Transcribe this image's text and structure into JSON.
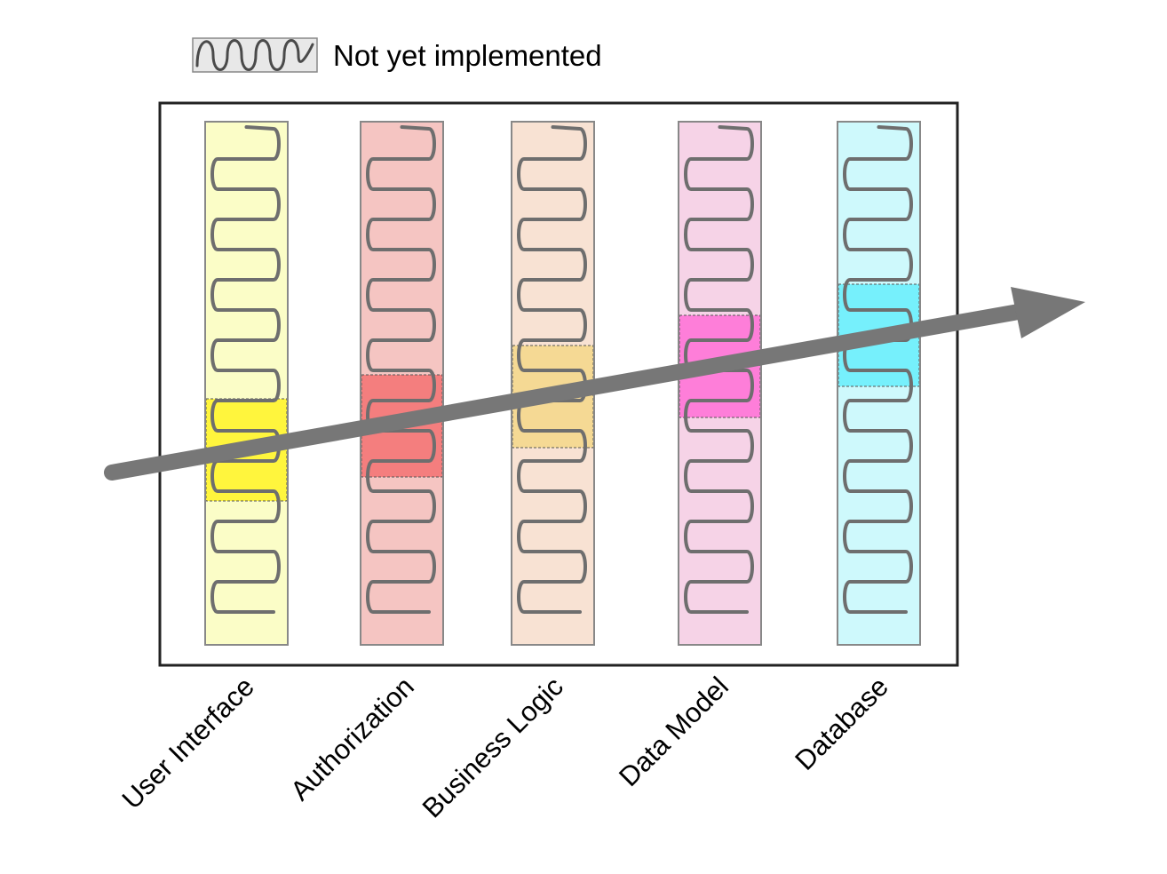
{
  "legend": {
    "label": "Not yet implemented",
    "icon": "squiggle-icon",
    "icon_fill": "#e8e8e8"
  },
  "layers": [
    {
      "label": "User Interface",
      "fill": "#fbfdc7",
      "highlight": "#fff53d"
    },
    {
      "label": "Authorization",
      "fill": "#f5c5c2",
      "highlight": "#f47e7e"
    },
    {
      "label": "Business Logic",
      "fill": "#f8e2d3",
      "highlight": "#f5d994"
    },
    {
      "label": "Data Model",
      "fill": "#f6d3e7",
      "highlight": "#fe7ed9"
    },
    {
      "label": "Database",
      "fill": "#cef9fc",
      "highlight": "#76f0fc"
    }
  ],
  "arrow": {
    "color": "#777777"
  },
  "frame": {
    "border_color": "#222222",
    "column_border_color": "#888888"
  }
}
